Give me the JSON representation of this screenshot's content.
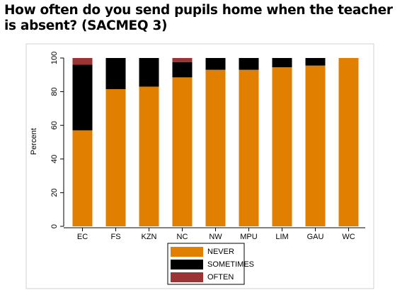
{
  "chart_data": {
    "type": "stacked_bar",
    "title": "How often do you send pupils home when the teacher is absent? (SACMEQ 3)",
    "y_label": "Percent",
    "categories": [
      "EC",
      "FS",
      "KZN",
      "NC",
      "NW",
      "MPU",
      "LIM",
      "GAU",
      "WC"
    ],
    "series": [
      {
        "name": "NEVER",
        "color": "#e07f00",
        "values": [
          57,
          81.5,
          83,
          88.5,
          93,
          93,
          94.5,
          95.5,
          100
        ]
      },
      {
        "name": "SOMETIMES",
        "color": "#000000",
        "values": [
          39,
          18.5,
          17,
          9,
          7,
          7,
          5.5,
          4.5,
          0
        ]
      },
      {
        "name": "OFTEN",
        "color": "#9b3535",
        "values": [
          4,
          0,
          0,
          2.5,
          0,
          0,
          0,
          0,
          0
        ]
      }
    ],
    "ylim": [
      0,
      100
    ],
    "yticks": [
      0,
      20,
      40,
      60,
      80,
      100
    ]
  }
}
